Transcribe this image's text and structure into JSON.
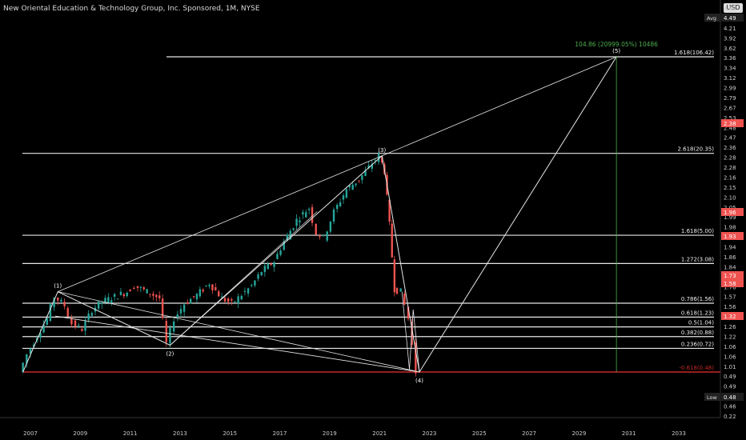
{
  "header": {
    "title": "New Oriental Education & Technology Group, Inc. Sponsored, 1M, NYSE",
    "currency": "USD"
  },
  "colors": {
    "background": "#000000",
    "up": "#26a69a",
    "down": "#ef5350",
    "lines": "#e6e6e6",
    "target": "#4caf50",
    "support": "#c62828"
  },
  "chart_data": {
    "type": "candlestick",
    "x_ticks": [
      "2007",
      "2009",
      "2011",
      "2013",
      "2015",
      "2017",
      "2019",
      "2021",
      "2023",
      "2025",
      "2027",
      "2029",
      "2031",
      "2033"
    ],
    "y_scale": "log",
    "price_labels": [
      "4.62",
      "4.49",
      "4.21",
      "3.92",
      "3.62",
      "3.36",
      "3.34",
      "3.12",
      "2.99",
      "2.79",
      "2.67",
      "2.53",
      "2.48",
      "2.47",
      "2.36",
      "2.28",
      "2.28",
      "2.16",
      "2.15",
      "2.10",
      "2.05",
      "1.99",
      "1.98",
      "1.96",
      "1.94",
      "1.86",
      "1.84",
      "1.79",
      "1.76",
      "1.57",
      "1.56",
      "1.39",
      "1.26",
      "1.22",
      "1.06",
      "1.06",
      "1.01",
      "0.49",
      "0.49",
      "0.49",
      "0.46",
      "0.22"
    ],
    "highlight_labels": [
      {
        "text": "Avg",
        "value": "4.49"
      },
      {
        "text": "",
        "value": "2.38"
      },
      {
        "text": "",
        "value": "1.96"
      },
      {
        "text": "",
        "value": "1.93"
      },
      {
        "text": "",
        "value": "1.73"
      },
      {
        "text": "",
        "value": "1.58"
      },
      {
        "text": "",
        "value": "1.32"
      },
      {
        "text": "Low",
        "value": "0.48"
      }
    ],
    "fib_levels": [
      {
        "label": "1.618(106.42)",
        "price": 106.42
      },
      {
        "label": "2.618(20.35)",
        "price": 20.35
      },
      {
        "label": "1.618(5.00)",
        "price": 5.0
      },
      {
        "label": "1.272(3.08)",
        "price": 3.08
      },
      {
        "label": "0.786(1.56)",
        "price": 1.56
      },
      {
        "label": "0.618(1.23)",
        "price": 1.23
      },
      {
        "label": "0.5(1.04)",
        "price": 1.04
      },
      {
        "label": "0.382(0.88)",
        "price": 0.88
      },
      {
        "label": "0.236(0.72)",
        "price": 0.72
      },
      {
        "label": "-0.618(0.48)",
        "price": 0.48
      }
    ],
    "wave_labels": [
      {
        "label": "(1)",
        "date": 2008.1,
        "price": 1.9
      },
      {
        "label": "(2)",
        "date": 2012.6,
        "price": 0.76
      },
      {
        "label": "(3)",
        "date": 2021.1,
        "price": 19.5
      },
      {
        "label": "(4)",
        "date": 2022.6,
        "price": 0.48
      },
      {
        "label": "(5)",
        "date": 2030.5,
        "price": 106.4
      }
    ],
    "target_annotation": "104.86 (20999.05%) 10486",
    "price_path": [
      [
        2006.7,
        0.48
      ],
      [
        2007.0,
        0.65
      ],
      [
        2007.4,
        0.9
      ],
      [
        2007.8,
        1.2
      ],
      [
        2008.1,
        1.75
      ],
      [
        2008.5,
        1.5
      ],
      [
        2008.8,
        1.1
      ],
      [
        2009.2,
        1.0
      ],
      [
        2009.6,
        1.4
      ],
      [
        2010.0,
        1.6
      ],
      [
        2010.5,
        1.75
      ],
      [
        2011.0,
        1.9
      ],
      [
        2011.3,
        2.1
      ],
      [
        2011.8,
        1.9
      ],
      [
        2012.3,
        1.7
      ],
      [
        2012.6,
        0.78
      ],
      [
        2012.9,
        1.2
      ],
      [
        2013.3,
        1.55
      ],
      [
        2013.8,
        1.8
      ],
      [
        2014.3,
        2.2
      ],
      [
        2014.8,
        1.7
      ],
      [
        2015.2,
        1.55
      ],
      [
        2015.6,
        1.8
      ],
      [
        2016.0,
        2.1
      ],
      [
        2016.4,
        2.7
      ],
      [
        2016.9,
        3.2
      ],
      [
        2017.3,
        4.5
      ],
      [
        2017.8,
        6.5
      ],
      [
        2018.3,
        8.0
      ],
      [
        2018.6,
        5.2
      ],
      [
        2018.9,
        4.8
      ],
      [
        2019.3,
        7.5
      ],
      [
        2019.8,
        11.0
      ],
      [
        2020.3,
        13.0
      ],
      [
        2020.7,
        16.0
      ],
      [
        2021.1,
        19.5
      ],
      [
        2021.3,
        15.0
      ],
      [
        2021.5,
        6.0
      ],
      [
        2021.7,
        2.0
      ],
      [
        2022.0,
        1.9
      ],
      [
        2022.3,
        1.2
      ],
      [
        2022.6,
        0.48
      ]
    ]
  }
}
